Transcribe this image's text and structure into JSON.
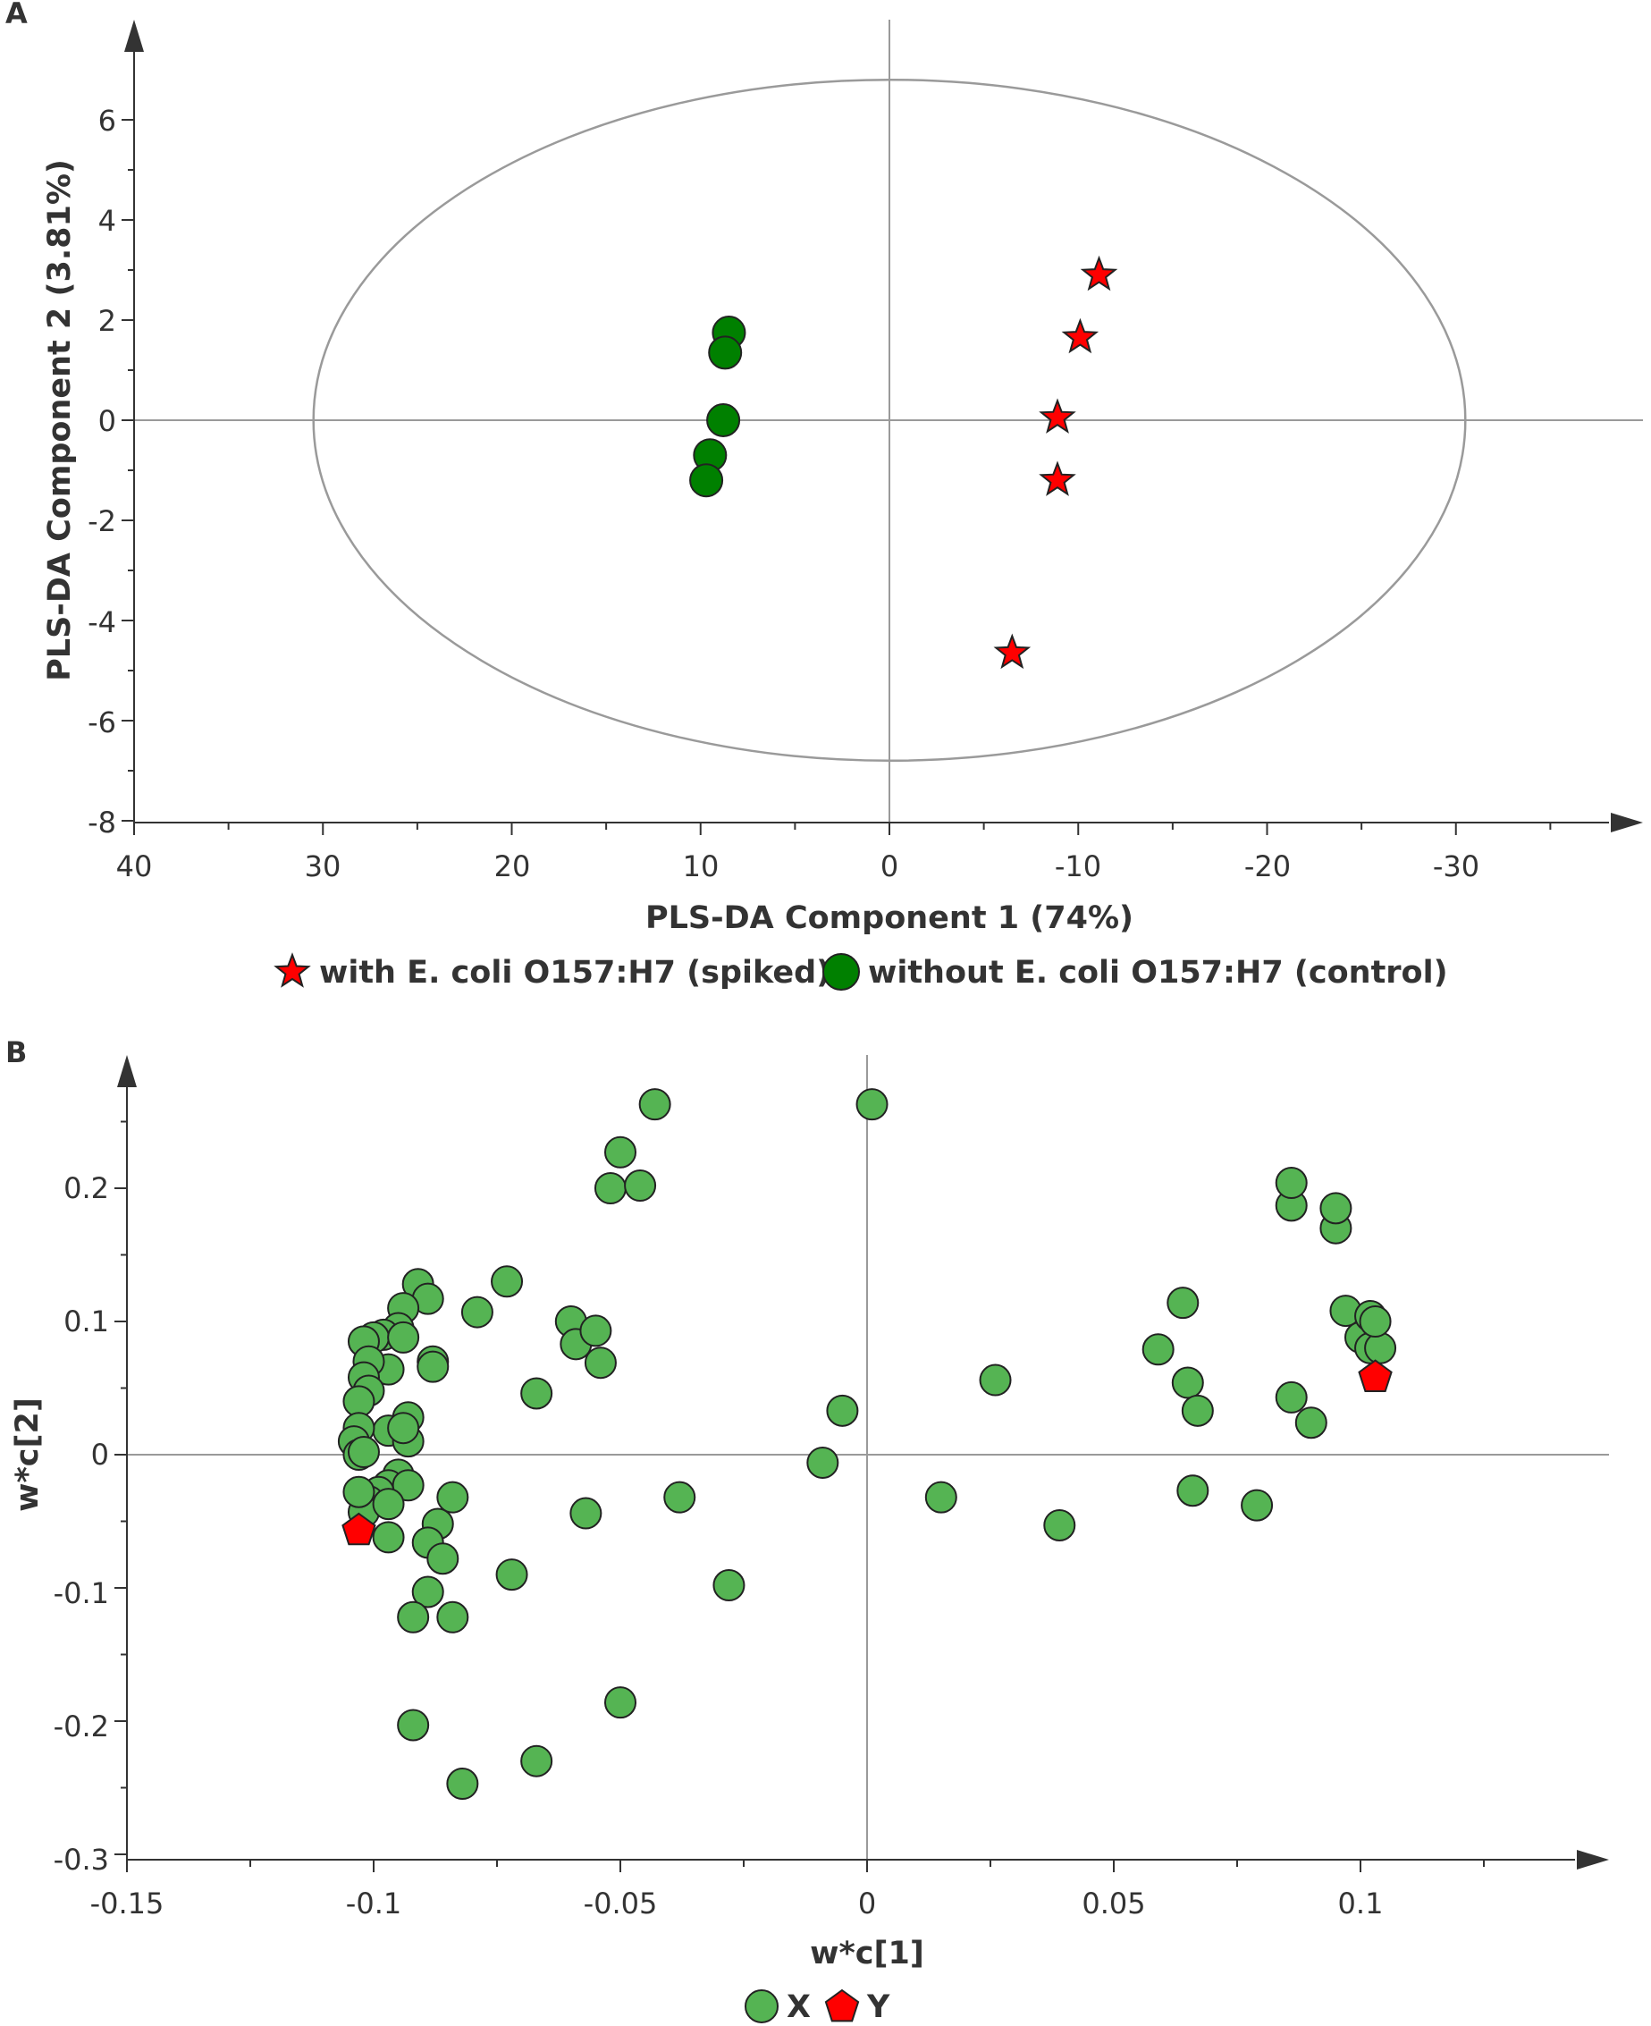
{
  "chart_data": [
    {
      "type": "scatter",
      "panel_label": "A",
      "title": "",
      "xlabel": "PLS-DA Component 1 (74%)",
      "ylabel": "PLS-DA Component 2 (3.81%)",
      "xlim": [
        40,
        -40
      ],
      "ylim": [
        -8,
        7.5
      ],
      "x_reversed": true,
      "x_ticks": [
        40,
        30,
        20,
        10,
        0,
        -10,
        -20,
        -30
      ],
      "x_tick_labels": [
        "40",
        "30",
        "20",
        "10",
        "0",
        "-10",
        "-20",
        "-30"
      ],
      "y_ticks": [
        -8,
        -6,
        -4,
        -2,
        0,
        2,
        4,
        6
      ],
      "y_tick_labels": [
        "-8",
        "-6",
        "-4",
        "-2",
        "0",
        "2",
        "4",
        "6"
      ],
      "ellipse": {
        "center": [
          0,
          0
        ],
        "rx": 30.5,
        "ry": 6.8
      },
      "series": [
        {
          "name": "with E. coli O157:H7 (spiked)",
          "marker": "star",
          "color": "#ff0000",
          "points": [
            [
              -11.1,
              2.9
            ],
            [
              -10.1,
              1.65
            ],
            [
              -8.9,
              0.05
            ],
            [
              -8.9,
              -1.2
            ],
            [
              -6.5,
              -4.65
            ]
          ]
        },
        {
          "name": "without E. coli O157:H7 (control)",
          "marker": "circle",
          "color": "#008000",
          "points": [
            [
              8.5,
              1.75
            ],
            [
              8.7,
              1.35
            ],
            [
              8.8,
              0.0
            ],
            [
              9.5,
              -0.7
            ],
            [
              9.7,
              -1.2
            ]
          ]
        }
      ],
      "legend": {
        "position": "bottom-center",
        "items": [
          "with E. coli O157:H7 (spiked)",
          "without E. coli O157:H7 (control)"
        ]
      }
    },
    {
      "type": "scatter",
      "panel_label": "B",
      "title": "",
      "xlabel": "w*c[1]",
      "ylabel": "w*c[2]",
      "xlim": [
        -0.15,
        0.15
      ],
      "ylim": [
        -0.3,
        0.3
      ],
      "x_ticks": [
        -0.15,
        -0.1,
        -0.05,
        0,
        0.05,
        0.1
      ],
      "x_tick_labels": [
        "-0.15",
        "-0.1",
        "-0.05",
        "0",
        "0.05",
        "0.1"
      ],
      "y_ticks": [
        -0.3,
        -0.2,
        -0.1,
        0,
        0.1,
        0.2
      ],
      "y_tick_labels": [
        "-0.3",
        "-0.2",
        "-0.1",
        "0",
        "0.1",
        "0.2"
      ],
      "series": [
        {
          "name": "X",
          "marker": "circle",
          "color": "#55b453",
          "points": [
            [
              0.001,
              0.263
            ],
            [
              -0.043,
              0.263
            ],
            [
              -0.05,
              0.227
            ],
            [
              -0.052,
              0.2
            ],
            [
              -0.046,
              0.202
            ],
            [
              -0.073,
              0.13
            ],
            [
              -0.091,
              0.128
            ],
            [
              -0.089,
              0.117
            ],
            [
              -0.079,
              0.107
            ],
            [
              -0.094,
              0.11
            ],
            [
              -0.095,
              0.095
            ],
            [
              -0.098,
              0.09
            ],
            [
              -0.1,
              0.088
            ],
            [
              -0.102,
              0.085
            ],
            [
              -0.094,
              0.088
            ],
            [
              -0.06,
              0.1
            ],
            [
              -0.059,
              0.083
            ],
            [
              -0.055,
              0.093
            ],
            [
              -0.054,
              0.069
            ],
            [
              -0.088,
              0.07
            ],
            [
              -0.088,
              0.066
            ],
            [
              -0.097,
              0.064
            ],
            [
              -0.101,
              0.07
            ],
            [
              -0.102,
              0.058
            ],
            [
              -0.101,
              0.048
            ],
            [
              -0.103,
              0.04
            ],
            [
              -0.067,
              0.046
            ],
            [
              -0.005,
              0.033
            ],
            [
              -0.093,
              0.028
            ],
            [
              -0.097,
              0.018
            ],
            [
              -0.093,
              0.01
            ],
            [
              -0.103,
              0.02
            ],
            [
              -0.104,
              0.01
            ],
            [
              -0.103,
              0.0
            ],
            [
              -0.102,
              0.002
            ],
            [
              -0.094,
              0.02
            ],
            [
              -0.095,
              -0.015
            ],
            [
              -0.097,
              -0.023
            ],
            [
              -0.093,
              -0.023
            ],
            [
              -0.099,
              -0.028
            ],
            [
              -0.101,
              -0.035
            ],
            [
              -0.102,
              -0.043
            ],
            [
              -0.097,
              -0.037
            ],
            [
              -0.103,
              -0.028
            ],
            [
              -0.097,
              -0.062
            ],
            [
              -0.087,
              -0.052
            ],
            [
              -0.084,
              -0.032
            ],
            [
              -0.089,
              -0.066
            ],
            [
              -0.086,
              -0.078
            ],
            [
              -0.072,
              -0.09
            ],
            [
              -0.057,
              -0.044
            ],
            [
              -0.038,
              -0.032
            ],
            [
              -0.028,
              -0.098
            ],
            [
              -0.009,
              -0.006
            ],
            [
              -0.089,
              -0.103
            ],
            [
              -0.092,
              -0.122
            ],
            [
              -0.084,
              -0.122
            ],
            [
              -0.092,
              -0.203
            ],
            [
              -0.082,
              -0.247
            ],
            [
              -0.067,
              -0.23
            ],
            [
              -0.05,
              -0.186
            ],
            [
              0.015,
              -0.032
            ],
            [
              0.039,
              -0.053
            ],
            [
              0.026,
              0.056
            ],
            [
              0.059,
              0.079
            ],
            [
              0.064,
              0.114
            ],
            [
              0.065,
              0.054
            ],
            [
              0.067,
              0.033
            ],
            [
              0.066,
              -0.027
            ],
            [
              0.079,
              -0.038
            ],
            [
              0.086,
              0.043
            ],
            [
              0.09,
              0.024
            ],
            [
              0.086,
              0.187
            ],
            [
              0.086,
              0.204
            ],
            [
              0.095,
              0.17
            ],
            [
              0.095,
              0.185
            ],
            [
              0.097,
              0.108
            ],
            [
              0.1,
              0.088
            ],
            [
              0.102,
              0.104
            ],
            [
              0.102,
              0.08
            ],
            [
              0.104,
              0.08
            ],
            [
              0.103,
              0.1
            ]
          ]
        },
        {
          "name": "Y",
          "marker": "pentagon",
          "color": "#ff0000",
          "points": [
            [
              -0.103,
              -0.057
            ],
            [
              0.103,
              0.058
            ]
          ]
        }
      ],
      "legend": {
        "position": "bottom-center",
        "items": [
          "X",
          "Y"
        ]
      }
    }
  ]
}
